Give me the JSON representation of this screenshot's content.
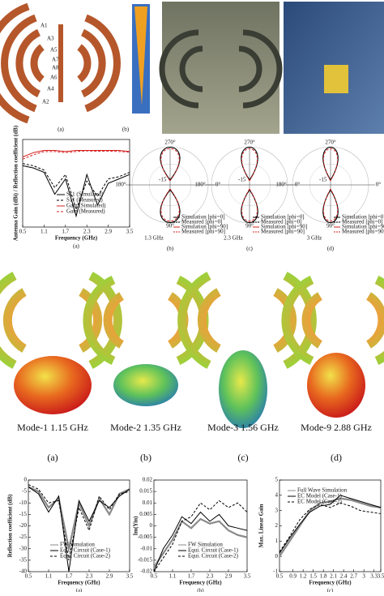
{
  "top_row": {
    "captions": [
      "(a)",
      "(b)"
    ],
    "ports": [
      "A1",
      "A3",
      "A5",
      "A7",
      "A8",
      "A6",
      "A4",
      "A2"
    ]
  },
  "polar": {
    "angle_labels": [
      "270°",
      "180°",
      "0°",
      "90°"
    ],
    "ring_label": "-15",
    "legend": [
      "Simulation [phi=0]",
      "Measured [phi=0]",
      "Simulation [phi=90]",
      "Measured [phi=90]"
    ],
    "plots": [
      {
        "freq": "1.3 GHz",
        "caption": "(b)"
      },
      {
        "freq": "2.3 GHz",
        "caption": "(c)"
      },
      {
        "freq": "3 GHz",
        "caption": "(d)"
      }
    ]
  },
  "modes": [
    {
      "label": "Mode-1 1.15 GHz",
      "caption": "(a)"
    },
    {
      "label": "Mode-2 1.35 GHz",
      "caption": "(b)"
    },
    {
      "label": "Mode-3 1.56 GHz",
      "caption": "(c)"
    },
    {
      "label": "Mode-9 2.88 GHz",
      "caption": "(d)"
    }
  ],
  "charts": [
    {
      "type": "line",
      "ylabel": "Antenna Gain (dBi) / Reflection coefficient (dB)",
      "xlabel": "Frequency (GHz)",
      "caption": "(a)",
      "x": [
        0.5,
        0.8,
        1.1,
        1.4,
        1.7,
        2.0,
        2.3,
        2.6,
        2.9,
        3.2,
        3.5
      ],
      "xlim": [
        0.5,
        3.5
      ],
      "xticks": [
        0.5,
        1.1,
        1.7,
        2.3,
        2.9,
        3.5
      ],
      "ylim": [
        -30,
        10
      ],
      "series": [
        {
          "name": "S11 (Simulated)",
          "color": "#000000",
          "dash": false,
          "values": [
            -2,
            -3,
            -5,
            -15,
            -8,
            -25,
            -6,
            -20,
            -10,
            -8,
            -6
          ]
        },
        {
          "name": "S11 (Measured)",
          "color": "#000000",
          "dash": true,
          "values": [
            -1,
            -2,
            -4,
            -12,
            -6,
            -22,
            -9,
            -16,
            -8,
            -7,
            -5
          ]
        },
        {
          "name": "Gain (Simulated)",
          "color": "#d62020",
          "dash": false,
          "values": [
            2,
            4,
            5,
            5,
            4.5,
            5,
            5,
            5,
            5,
            5,
            4.5
          ]
        },
        {
          "name": "Gain (Measured)",
          "color": "#d62020",
          "dash": true,
          "values": [
            1,
            3,
            4.5,
            4.5,
            4,
            4.5,
            4.8,
            4.6,
            4.7,
            4.5,
            4.2
          ]
        }
      ]
    },
    {
      "type": "line",
      "ylabel": "Reflection coefficient (dB)",
      "xlabel": "Frequency (GHz)",
      "caption": "(a)",
      "x": [
        0.5,
        0.8,
        1.1,
        1.4,
        1.7,
        2.0,
        2.3,
        2.6,
        2.9,
        3.2,
        3.5
      ],
      "xlim": [
        0.5,
        3.5
      ],
      "xticks": [
        0.5,
        1.1,
        1.7,
        2.3,
        2.9,
        3.5
      ],
      "ylim": [
        -40,
        0
      ],
      "yticks": [
        0,
        -5,
        -10,
        -15,
        -20,
        -25,
        -30,
        -35,
        -40
      ],
      "series": [
        {
          "name": "FW Simulation",
          "color": "#8a8a8a",
          "dash": false,
          "values": [
            -3,
            -5,
            -12,
            -8,
            -30,
            -10,
            -20,
            -8,
            -15,
            -6,
            -4
          ]
        },
        {
          "name": "Equi. Circuit (Case-1)",
          "color": "#000000",
          "dash": false,
          "values": [
            -3,
            -6,
            -14,
            -7,
            -40,
            -9,
            -18,
            -9,
            -12,
            -7,
            -4
          ]
        },
        {
          "name": "Equi. Circuit (Case-2)",
          "color": "#000000",
          "dash": true,
          "values": [
            -2,
            -4,
            -10,
            -9,
            -35,
            -12,
            -22,
            -7,
            -13,
            -6,
            -5
          ]
        }
      ]
    },
    {
      "type": "line",
      "ylabel": "Im(Yin)",
      "xlabel": "Frequency (GHz)",
      "caption": "(b)",
      "x": [
        0.5,
        0.8,
        1.1,
        1.4,
        1.7,
        2.0,
        2.3,
        2.6,
        2.9,
        3.2,
        3.5
      ],
      "xlim": [
        0.5,
        3.5
      ],
      "xticks": [
        0.5,
        1.1,
        1.7,
        2.3,
        2.9,
        3.5
      ],
      "ylim": [
        -0.02,
        0.02
      ],
      "yticks": [
        0.02,
        0.015,
        0.01,
        0.005,
        0,
        -0.005,
        -0.01,
        -0.015,
        -0.02
      ],
      "series": [
        {
          "name": "FW Simulation",
          "color": "#8a8a8a",
          "dash": false,
          "values": [
            -0.018,
            -0.012,
            -0.006,
            0.002,
            -0.001,
            0.003,
            0.001,
            0.002,
            -0.002,
            -0.004,
            -0.005
          ]
        },
        {
          "name": "Equi. Circuit (Case-1)",
          "color": "#000000",
          "dash": false,
          "values": [
            -0.02,
            -0.01,
            -0.004,
            0.004,
            0.001,
            0.006,
            0.002,
            0.005,
            0,
            -0.001,
            -0.002
          ]
        },
        {
          "name": "Equi. Circuit (Case-2)",
          "color": "#000000",
          "dash": true,
          "values": [
            -0.02,
            -0.014,
            -0.008,
            0.002,
            0.004,
            0.01,
            0.007,
            0.011,
            0.008,
            0.01,
            0.006
          ]
        }
      ]
    },
    {
      "type": "line",
      "ylabel": "Max. Linear Gain",
      "xlabel": "Frequency (GHz)",
      "caption": "(c)",
      "x": [
        0.5,
        0.8,
        1.1,
        1.4,
        1.7,
        2.0,
        2.3,
        2.6,
        2.9,
        3.2,
        3.5
      ],
      "xlim": [
        0.5,
        3.5
      ],
      "xticks": [
        0.5,
        0.9,
        1.2,
        1.5,
        1.8,
        2.1,
        2.4,
        2.7,
        3,
        3.3,
        3.5
      ],
      "ylim": [
        -1,
        5
      ],
      "yticks": [
        -1,
        0,
        1,
        2,
        3,
        4,
        5
      ],
      "series": [
        {
          "name": "Full Wave Simulation",
          "color": "#8a8a8a",
          "dash": false,
          "values": [
            0,
            1,
            2,
            3,
            3.5,
            3.6,
            3.8,
            3.7,
            3.5,
            3.3,
            3.2
          ]
        },
        {
          "name": "EC Model (Case-1)",
          "color": "#000000",
          "dash": false,
          "values": [
            0.2,
            1.2,
            2.1,
            2.9,
            3.3,
            3.4,
            4,
            3.8,
            3.6,
            3.4,
            3.2
          ]
        },
        {
          "name": "EC Model (Case-2)",
          "color": "#000000",
          "dash": true,
          "values": [
            0.3,
            1.3,
            2.4,
            3.1,
            3.4,
            3.2,
            3.5,
            3.3,
            3,
            2.9,
            2.8
          ]
        }
      ]
    }
  ]
}
